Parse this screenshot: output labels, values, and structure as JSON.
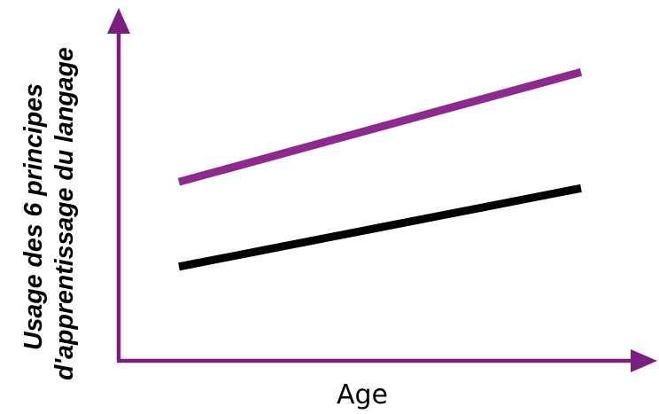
{
  "chart_data": {
    "type": "line",
    "title": "",
    "xlabel": "Age",
    "ylabel_lines": [
      "Usage des 6 principes",
      "d'apprentissage du langage"
    ],
    "grid": false,
    "legend": "none",
    "axis_color": "#7a1f7f",
    "x": [
      0,
      1
    ],
    "series": [
      {
        "color": "#8e2a8e",
        "values": [
          0.57,
          0.92
        ]
      },
      {
        "color": "#000000",
        "values": [
          0.3,
          0.55
        ]
      }
    ]
  }
}
